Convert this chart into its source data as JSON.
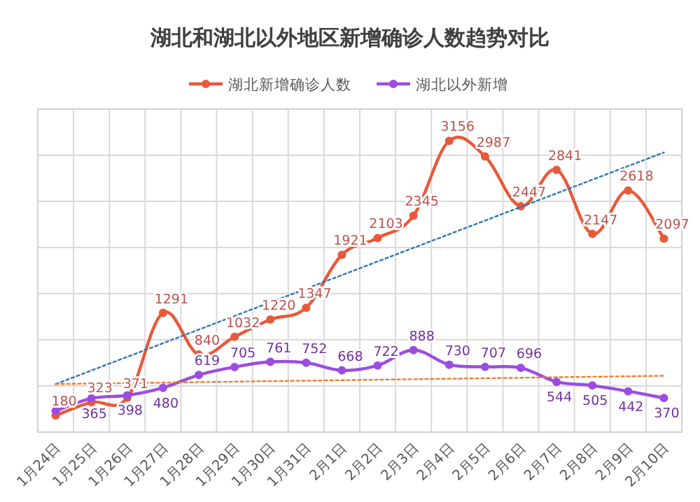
{
  "chart_data": {
    "type": "line",
    "title": "湖北和湖北以外地区新增确诊人数趋势对比",
    "categories": [
      "1月24日",
      "1月25日",
      "1月26日",
      "1月27日",
      "1月28日",
      "1月29日",
      "1月30日",
      "1月31日",
      "2月1日",
      "2月2日",
      "2月3日",
      "2月4日",
      "2月5日",
      "2月6日",
      "2月7日",
      "2月8日",
      "2月9日",
      "2月10日"
    ],
    "series": [
      {
        "name": "湖北新增确诊人数",
        "color": "#e8593a",
        "values": [
          180,
          323,
          371,
          1291,
          840,
          1032,
          1220,
          1347,
          1921,
          2103,
          2345,
          3156,
          2987,
          2447,
          2841,
          2147,
          2618,
          2097
        ]
      },
      {
        "name": "湖北以外新增",
        "color": "#9b4de0",
        "values": [
          230,
          365,
          398,
          480,
          619,
          705,
          761,
          752,
          668,
          722,
          888,
          730,
          707,
          696,
          544,
          505,
          442,
          370
        ],
        "value_labels": [
          null,
          "365",
          "398",
          "480",
          "619",
          "705",
          "761",
          "752",
          "668",
          "722",
          "888",
          "730",
          "707",
          "696",
          "544",
          "505",
          "442",
          "370"
        ]
      },
      {
        "color": "#2e75b6",
        "x": [
          "1月24日",
          "2月10日"
        ],
        "values": [
          520,
          3030
        ],
        "value_labels": [
          null,
          null
        ],
        "line_style": "dotted",
        "marker": "none"
      },
      {
        "color": "#ed7d31",
        "x": [
          "1月24日",
          "2月10日"
        ],
        "values": [
          520,
          610
        ],
        "value_labels": [
          null,
          null
        ],
        "line_style": "dotted",
        "marker": "none"
      }
    ],
    "ylim": [
      0,
      3500
    ],
    "yticks": [
      {
        "value": 0,
        "label": null
      },
      {
        "value": 500,
        "label": null
      },
      {
        "value": 1000,
        "label": null
      },
      {
        "value": 1500,
        "label": null
      },
      {
        "value": 2000,
        "label": null
      },
      {
        "value": 2500,
        "label": null
      },
      {
        "value": 3000,
        "label": null
      },
      {
        "value": 3500,
        "label": null
      }
    ],
    "tick_labels": "x",
    "grid": true,
    "legend": "top",
    "marker": "circle",
    "data_labels": true
  }
}
